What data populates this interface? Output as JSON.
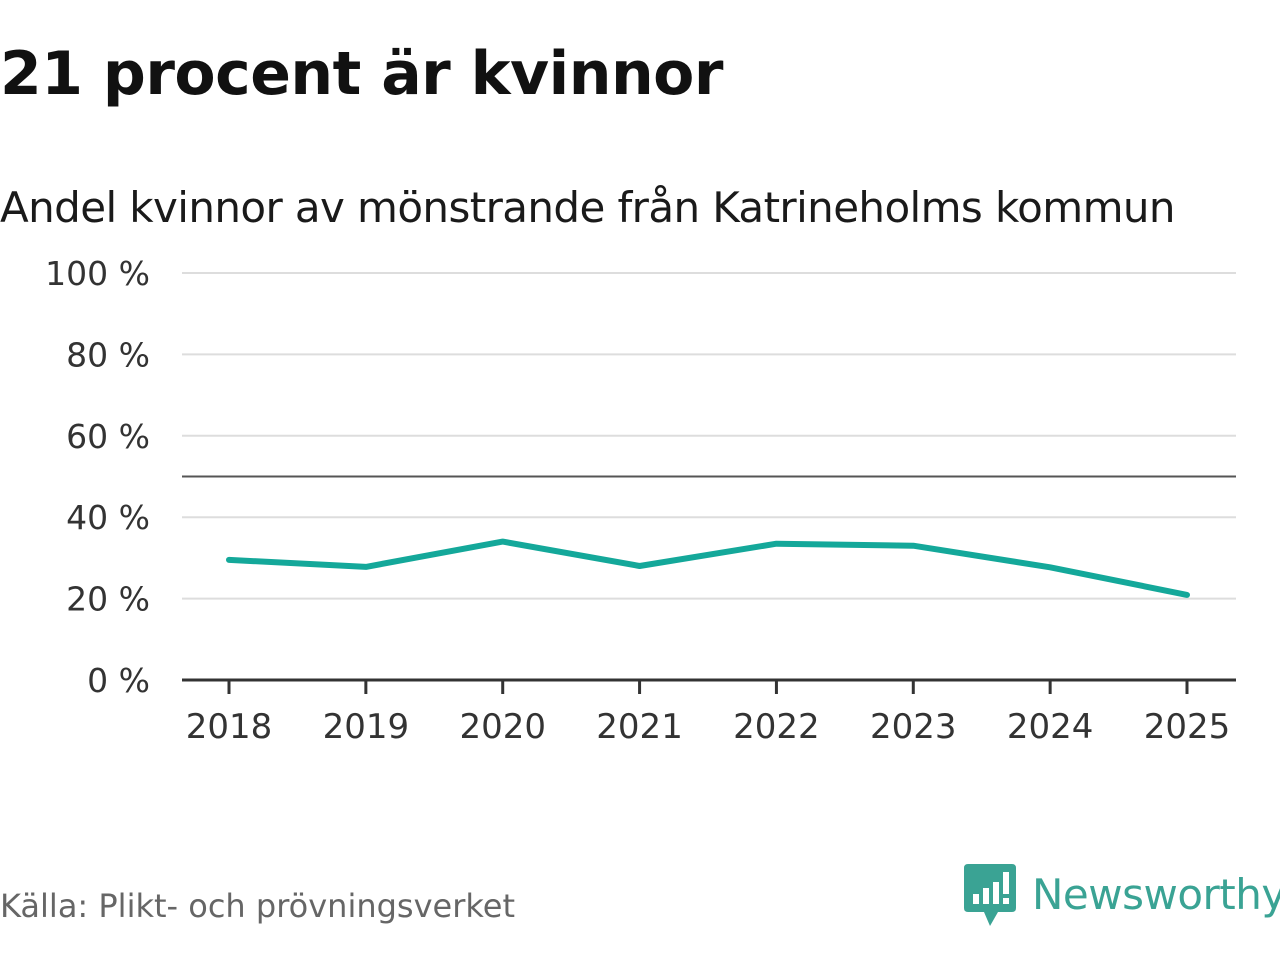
{
  "chart_data": {
    "type": "line",
    "title": "21 procent är kvinnor",
    "subtitle": "Andel kvinnor av mönstrande från Katrineholms kommun",
    "x": [
      "2018",
      "2019",
      "2020",
      "2021",
      "2022",
      "2023",
      "2024",
      "2025"
    ],
    "series": [
      {
        "values": [
          29.5,
          27.8,
          34.0,
          28.0,
          33.5,
          33.0,
          27.7,
          20.9
        ]
      }
    ],
    "yticks": [
      0,
      20,
      40,
      60,
      80,
      100
    ],
    "ytick_labels": [
      "0 %",
      "20 %",
      "40 %",
      "60 %",
      "80 %",
      "100 %"
    ],
    "ylim": [
      0,
      100
    ],
    "reference_line": 50,
    "grid": true,
    "legend": "none",
    "colors": {
      "line": "#14a89a",
      "grid": "#dddddd",
      "reference": "#555555",
      "axis": "#333333"
    }
  },
  "source": "Källa: Plikt- och prövningsverket",
  "logo": {
    "name": "Newsworthy",
    "icon": "newsworthy-logo-icon",
    "color": "#3aa394"
  }
}
